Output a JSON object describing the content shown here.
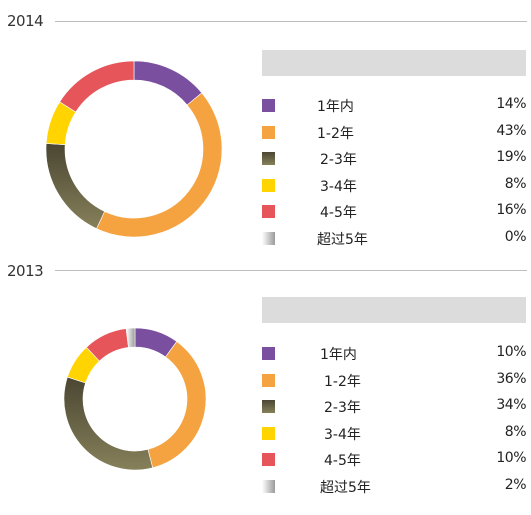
{
  "chart_data": [
    {
      "type": "pie",
      "title": "2014",
      "categories": [
        "1年内",
        "1-2年",
        "2-3年",
        "3-4年",
        "4-5年",
        "超过5年"
      ],
      "values": [
        14,
        43,
        19,
        8,
        16,
        0
      ],
      "value_labels": [
        "14%",
        "43%",
        "19%",
        "8%",
        "16%",
        "0%"
      ],
      "colors": [
        "#7b4fa0",
        "#f4a340",
        "#6b6648",
        "#ffd400",
        "#e5555a",
        "#bdbdbd"
      ],
      "legend": "right"
    },
    {
      "type": "pie",
      "title": "2013",
      "categories": [
        "1年内",
        "1-2年",
        "2-3年",
        "3-4年",
        "4-5年",
        "超过5年"
      ],
      "values": [
        10,
        36,
        34,
        8,
        10,
        2
      ],
      "value_labels": [
        "10%",
        "36%",
        "34%",
        "8%",
        "10%",
        "2%"
      ],
      "colors": [
        "#7b4fa0",
        "#f4a340",
        "#6b6648",
        "#ffd400",
        "#e5555a",
        "#bdbdbd"
      ],
      "legend": "right"
    }
  ]
}
